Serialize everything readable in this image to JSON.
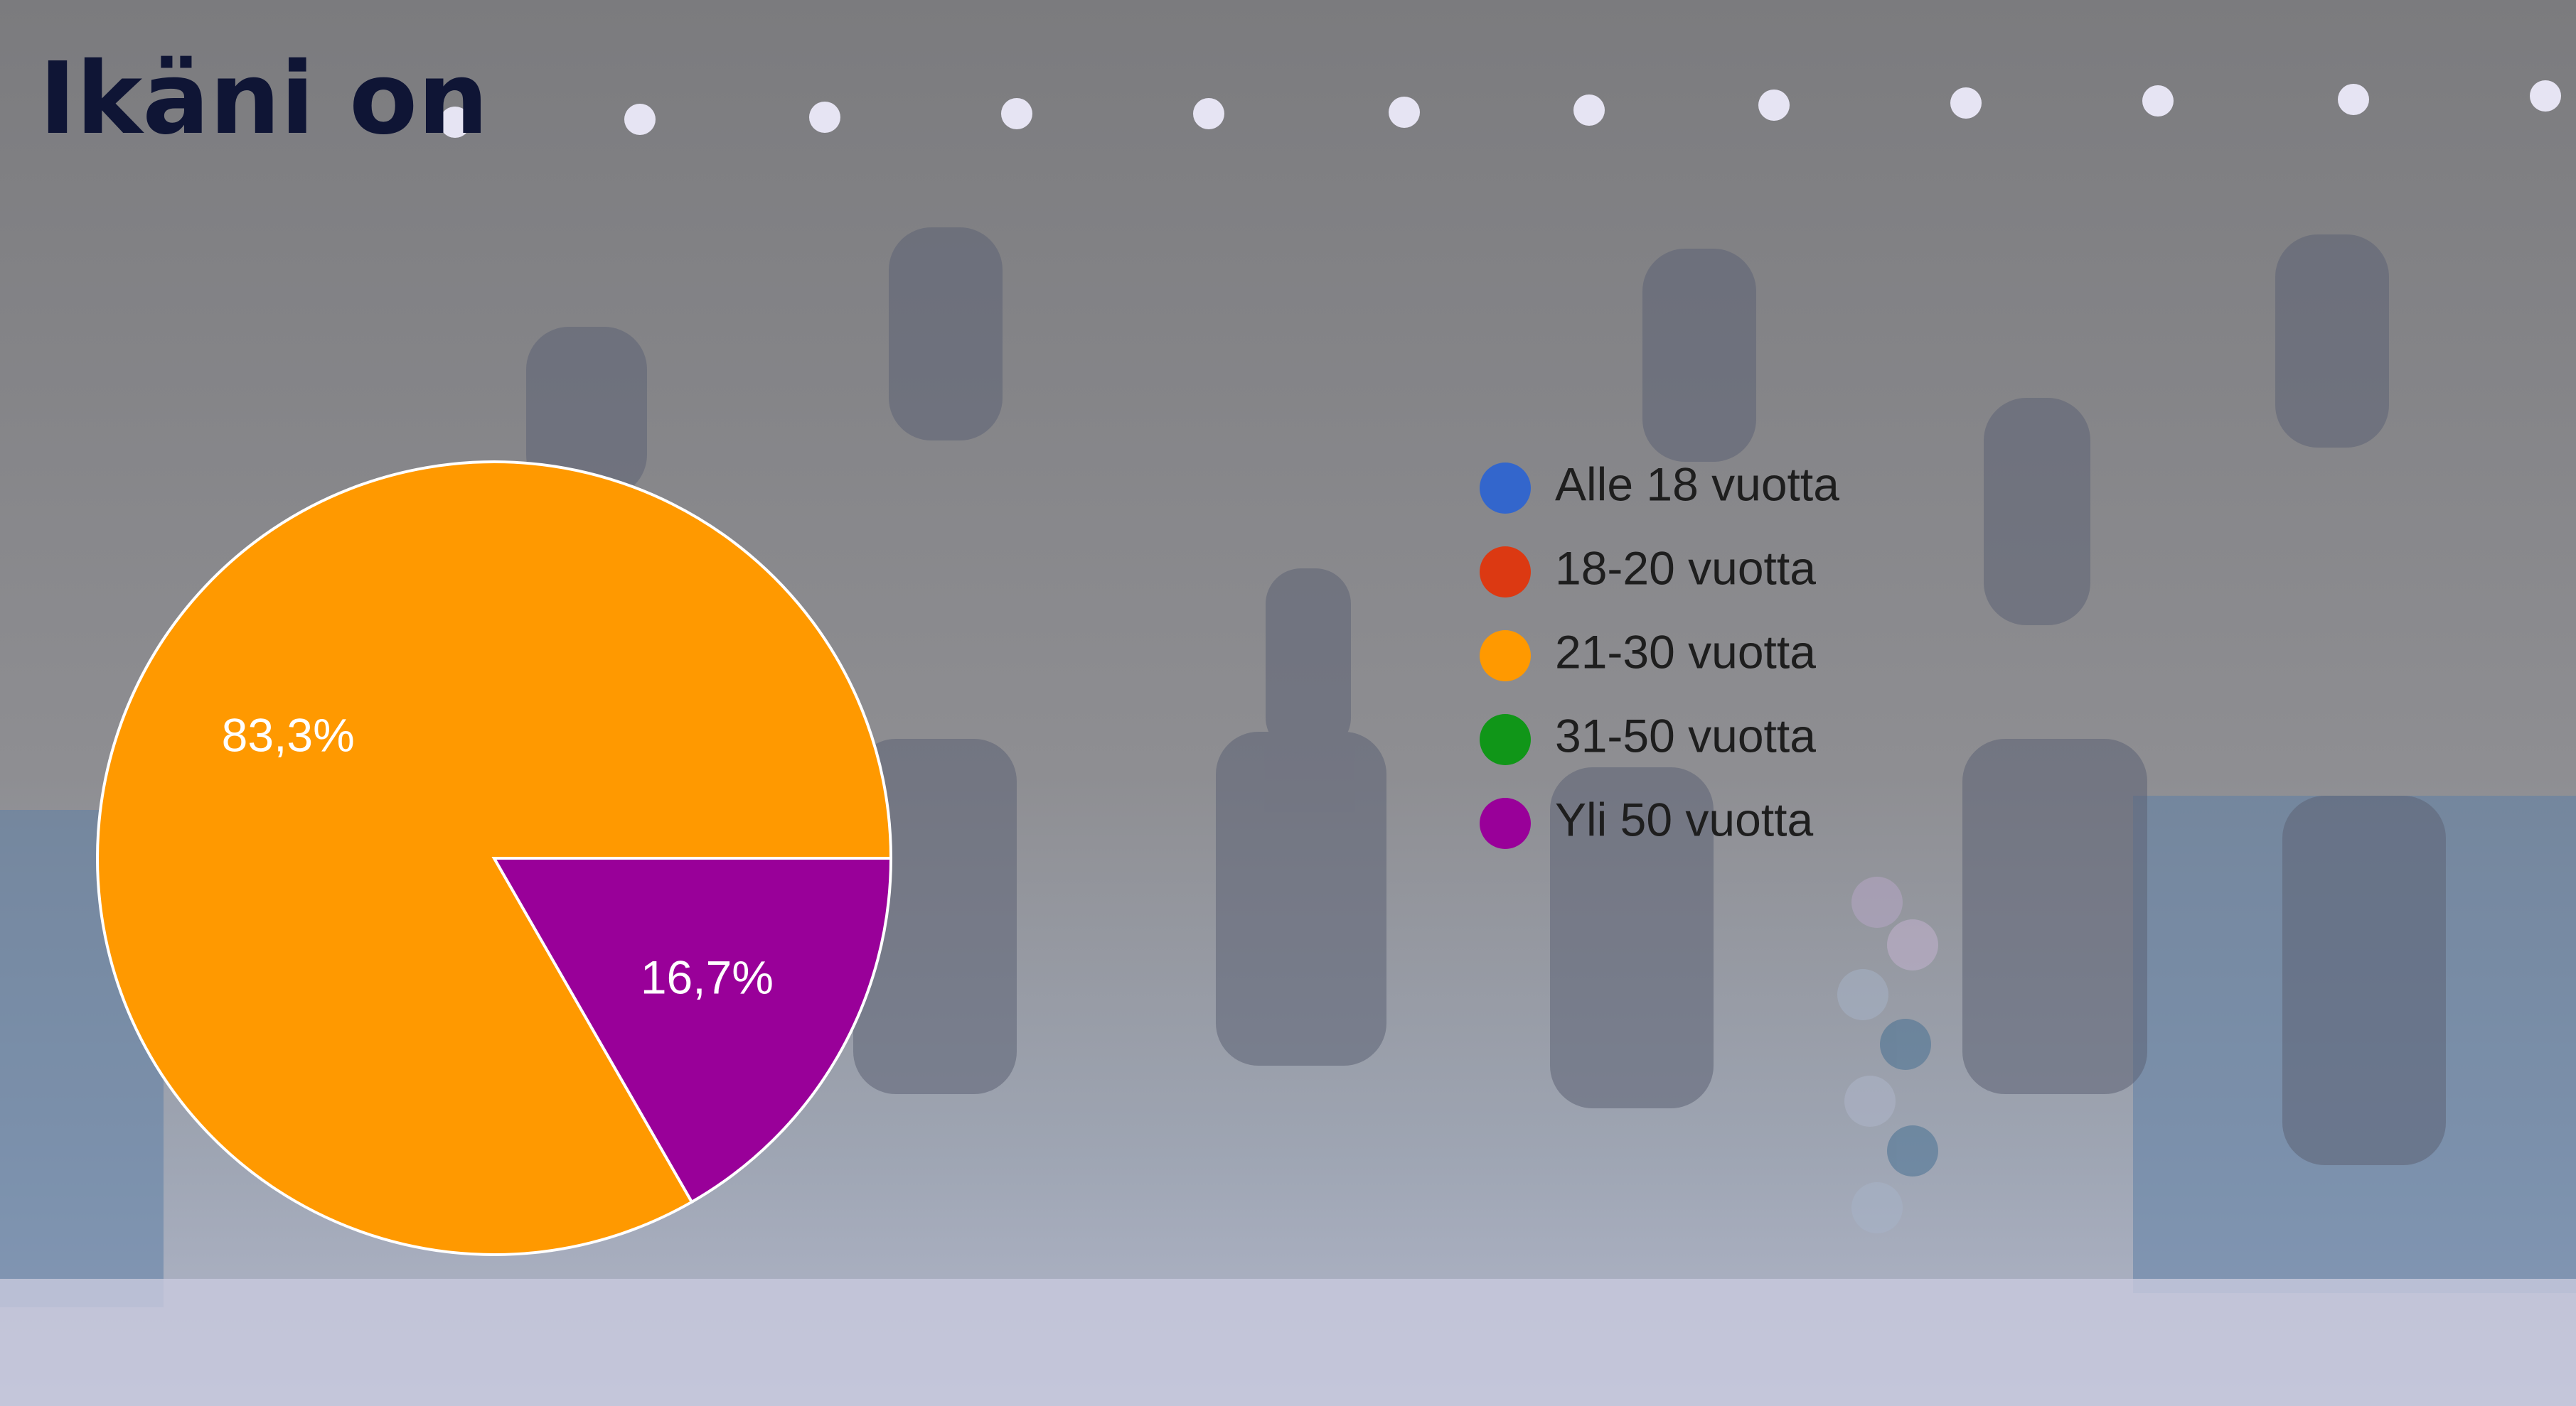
{
  "title": "Ikäni on",
  "chart_data": {
    "type": "pie",
    "title": "Ikäni on",
    "categories": [
      "Alle 18 vuotta",
      "18-20 vuotta",
      "21-30 vuotta",
      "31-50 vuotta",
      "Yli 50 vuotta"
    ],
    "values": [
      0,
      0,
      83.3,
      0,
      16.7
    ],
    "value_labels": [
      "",
      "",
      "83,3%",
      "",
      "16,7%"
    ],
    "colors": [
      "#3366cc",
      "#dc3912",
      "#ff9900",
      "#109618",
      "#990099"
    ],
    "legend_position": "right",
    "start_angle_deg": 0,
    "direction": "counterclockwise"
  },
  "background": {
    "description_color": "#8f8f8f"
  }
}
